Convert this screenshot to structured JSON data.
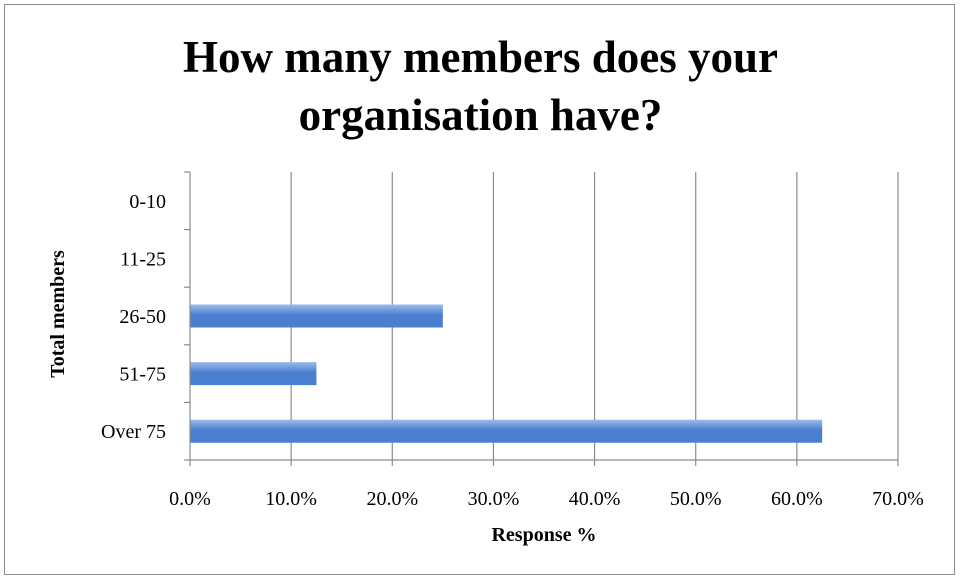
{
  "chart_data": {
    "type": "bar",
    "orientation": "horizontal",
    "title_lines": [
      "How many members does your",
      "organisation have?"
    ],
    "categories": [
      "0-10",
      "11-25",
      "26-50",
      "51-75",
      "Over 75"
    ],
    "values": [
      0,
      0,
      25.0,
      12.5,
      62.5
    ],
    "xlabel": "Response %",
    "ylabel": "Total members",
    "xlim": [
      0,
      70
    ],
    "xticks": [
      "0.0%",
      "10.0%",
      "20.0%",
      "30.0%",
      "40.0%",
      "50.0%",
      "60.0%",
      "70.0%"
    ],
    "grid": "vertical",
    "legend": "none",
    "bar_color": "#4a7fd0",
    "bar_highlight": "#9dbcec"
  }
}
